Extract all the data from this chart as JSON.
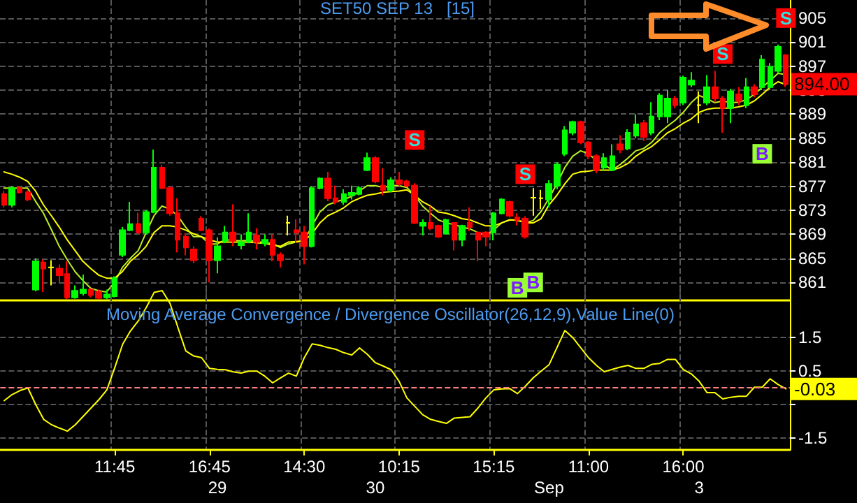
{
  "chart_data": [
    {
      "type": "candlestick",
      "title": "SET50 SEP 13   [15]",
      "categories": [
        null,
        null,
        null,
        null,
        null,
        null,
        null,
        null,
        null,
        null,
        null,
        null,
        null,
        null,
        null,
        null,
        null,
        null,
        null,
        null,
        null,
        null,
        null,
        null,
        null,
        null,
        null,
        null,
        null,
        null,
        null,
        null,
        null,
        null,
        null,
        null,
        null,
        null,
        null,
        null,
        null,
        null,
        null,
        null,
        null,
        null,
        null,
        null,
        null,
        null,
        null,
        null,
        null,
        null,
        null,
        null,
        null,
        null,
        null,
        null,
        null,
        null,
        null,
        null,
        null,
        null,
        null,
        null,
        null,
        null,
        null,
        null,
        null,
        null,
        null,
        null,
        null,
        null,
        null,
        null,
        null,
        null,
        null,
        null,
        null,
        null,
        null,
        null,
        null,
        null,
        null,
        null,
        null,
        null,
        null,
        null,
        null,
        null,
        null,
        null
      ],
      "series": [
        {
          "ohlc": [
            [
              875.7,
              876.2,
              873.5,
              873.9
            ],
            [
              873.9,
              877,
              873.5,
              876.7
            ],
            [
              876.7,
              877,
              875.8,
              876.0
            ],
            [
              876,
              876.3,
              874.5,
              874.8
            ],
            [
              859.8,
              865,
              859.5,
              864.5
            ],
            [
              864.3,
              864.8,
              859.4,
              863.3
            ],
            [
              863.5,
              864.7,
              860.5,
              863.5
            ],
            [
              863.3,
              864,
              861,
              862.2
            ],
            [
              862.4,
              864.5,
              858.2,
              858.5
            ],
            [
              858.5,
              860.5,
              858.3,
              859.6
            ],
            [
              859.2,
              862.3,
              858.8,
              859.8
            ],
            [
              859.8,
              860,
              858.5,
              858.9
            ],
            [
              859.4,
              859.8,
              858.2,
              858.4
            ],
            [
              858.5,
              859.8,
              858.2,
              859.0
            ],
            [
              858.7,
              862,
              858.5,
              861.7
            ],
            [
              865.6,
              870.2,
              865.2,
              869.7
            ],
            [
              869.7,
              874.4,
              869.5,
              870.7
            ],
            [
              870.7,
              872.6,
              869,
              869.3
            ],
            [
              869.3,
              873,
              869,
              872.7
            ],
            [
              872.7,
              883.1,
              872.5,
              880.1
            ],
            [
              880.1,
              880.6,
              876.5,
              876.7
            ],
            [
              876.7,
              877,
              872.1,
              872.5
            ],
            [
              872.5,
              875,
              866,
              868.1
            ],
            [
              868.6,
              869.2,
              865.5,
              866.8
            ],
            [
              866.5,
              867,
              864.2,
              864.7
            ],
            [
              871.6,
              872,
              869.5,
              869.7
            ],
            [
              869.7,
              870,
              861,
              864.7
            ],
            [
              864.7,
              868.5,
              862.5,
              867.0
            ],
            [
              867.9,
              870.4,
              867.5,
              869.3
            ],
            [
              869.3,
              874,
              867,
              867.9
            ],
            [
              867.2,
              869,
              866.5,
              867.7
            ],
            [
              867.9,
              872.5,
              867.5,
              869.3
            ],
            [
              868.8,
              870,
              866.5,
              867.7
            ],
            [
              867.5,
              869,
              867,
              868.1
            ],
            [
              868.1,
              869,
              864.5,
              865.6
            ],
            [
              865.6,
              866,
              863.5,
              864.7
            ],
            [
              870.9,
              872.1,
              868.8,
              870.9
            ],
            [
              869.7,
              871.5,
              867.5,
              869.3
            ],
            [
              869.3,
              870.4,
              864,
              867.0
            ],
            [
              867.0,
              877,
              866.8,
              876.7
            ],
            [
              876.7,
              878.5,
              876.5,
              878.3
            ],
            [
              878.3,
              879.4,
              874.5,
              875.0
            ],
            [
              875.0,
              877.1,
              874,
              874.4
            ],
            [
              874.4,
              876.5,
              873.9,
              875.7
            ],
            [
              875.5,
              877.1,
              874.8,
              875.9
            ],
            [
              875.7,
              877,
              875.5,
              876.7
            ],
            [
              879.7,
              882.6,
              879.5,
              881.7
            ],
            [
              881.7,
              882,
              877.5,
              877.8
            ],
            [
              877.1,
              880,
              875.5,
              876.4
            ],
            [
              876.4,
              878.5,
              876,
              878.0
            ],
            [
              878.0,
              879.4,
              877,
              877.4
            ],
            [
              877.8,
              878.1,
              876.9,
              877.1
            ],
            [
              877.1,
              877.5,
              870.7,
              870.9
            ],
            [
              870.4,
              871.5,
              868.8,
              870.9
            ],
            [
              870.9,
              873.7,
              869.7,
              870.0
            ],
            [
              870.4,
              870.6,
              868.4,
              868.6
            ],
            [
              869.1,
              871.6,
              869,
              871.4
            ],
            [
              870.9,
              871,
              866.3,
              868.1
            ],
            [
              868.1,
              870.6,
              867,
              870.4
            ],
            [
              870.9,
              873.5,
              869.5,
              870.2
            ],
            [
              869.3,
              869.5,
              864.5,
              868.1
            ],
            [
              869.3,
              869.5,
              867,
              868.6
            ],
            [
              869.3,
              872.7,
              868,
              872.5
            ],
            [
              872.5,
              875,
              872.3,
              874.8
            ],
            [
              874.4,
              874.6,
              871.8,
              872.1
            ],
            [
              871.8,
              872.5,
              870.5,
              871.4
            ],
            [
              871.6,
              872,
              868.3,
              868.6
            ],
            [
              875.1,
              876.7,
              872.1,
              875.1
            ],
            [
              875,
              876.4,
              873.2,
              875
            ],
            [
              874.8,
              878,
              873.5,
              877.4
            ],
            [
              877.1,
              881,
              876.5,
              880.6
            ],
            [
              882.4,
              887,
              882,
              886.3
            ],
            [
              885.9,
              887.9,
              885.5,
              887.7
            ],
            [
              887.7,
              887.9,
              884,
              884.3
            ],
            [
              884.3,
              884.5,
              881.5,
              882.0
            ],
            [
              882.0,
              882.3,
              879.2,
              879.7
            ],
            [
              880.1,
              882.5,
              879.5,
              881.7
            ],
            [
              879.7,
              884,
              879.5,
              882.0
            ],
            [
              884.0,
              885.5,
              882.5,
              883.1
            ],
            [
              883.3,
              886.5,
              883,
              885.9
            ],
            [
              885.4,
              889,
              885,
              887.3
            ],
            [
              887.5,
              888,
              884.5,
              885.2
            ],
            [
              885.9,
              891,
              885.5,
              888.6
            ],
            [
              888.6,
              892.5,
              888,
              892.1
            ],
            [
              888.6,
              893,
              887.5,
              891.6
            ],
            [
              891.6,
              892,
              890,
              890.5
            ],
            [
              890.9,
              895.4,
              890.5,
              895.1
            ],
            [
              893.9,
              896,
              893.5,
              894.6
            ],
            [
              890.5,
              892.8,
              887.5,
              890.5
            ],
            [
              890.9,
              895.5,
              890.5,
              893.5
            ],
            [
              893.5,
              896.2,
              891,
              891.6
            ],
            [
              891.6,
              892,
              885.9,
              890.0
            ],
            [
              890.0,
              893.2,
              887.5,
              892.8
            ],
            [
              892.3,
              893.5,
              890.5,
              891.2
            ],
            [
              890.5,
              895,
              890,
              893.5
            ],
            [
              893.5,
              894,
              891.8,
              892.3
            ],
            [
              893.5,
              898.8,
              893,
              898.1
            ],
            [
              893.5,
              897.5,
              893,
              896.9
            ],
            [
              896.2,
              900.6,
              895.8,
              900.2
            ],
            [
              898.8,
              899,
              893.5,
              894.0
            ]
          ],
          "colors": [
            "#ff0000",
            "#00ff00",
            "#ff0000",
            "#ff0000",
            "#00ff00",
            "#ff0000",
            "#ffff00",
            "#ff0000",
            "#ff0000",
            "#00ff00",
            "#00ff00",
            "#ff0000",
            "#ff0000",
            "#00ff00",
            "#00ff00",
            "#00ff00",
            "#00ff00",
            "#ff0000",
            "#00ff00",
            "#00ff00",
            "#ff0000",
            "#ff0000",
            "#ff0000",
            "#ff0000",
            "#ff0000",
            "#ff0000",
            "#ff0000",
            "#00ff00",
            "#00ff00",
            "#ff0000",
            "#00ff00",
            "#00ff00",
            "#ff0000",
            "#00ff00",
            "#ff0000",
            "#ff0000",
            "#ffff00",
            "#ff0000",
            "#ff0000",
            "#00ff00",
            "#00ff00",
            "#ff0000",
            "#ff0000",
            "#00ff00",
            "#00ff00",
            "#00ff00",
            "#00ff00",
            "#ff0000",
            "#ff0000",
            "#00ff00",
            "#ff0000",
            "#ff0000",
            "#ff0000",
            "#00ff00",
            "#ff0000",
            "#ff0000",
            "#00ff00",
            "#ff0000",
            "#00ff00",
            "#ff0000",
            "#ff0000",
            "#ff0000",
            "#00ff00",
            "#00ff00",
            "#ff0000",
            "#ff0000",
            "#ff0000",
            "#ffff00",
            "#ffff00",
            "#00ff00",
            "#00ff00",
            "#00ff00",
            "#00ff00",
            "#ff0000",
            "#ff0000",
            "#ff0000",
            "#00ff00",
            "#00ff00",
            "#ff0000",
            "#00ff00",
            "#00ff00",
            "#ff0000",
            "#00ff00",
            "#00ff00",
            "#00ff00",
            "#ff0000",
            "#00ff00",
            "#00ff00",
            "#ffff00",
            "#00ff00",
            "#ff0000",
            "#ff0000",
            "#00ff00",
            "#ff0000",
            "#00ff00",
            "#ff0000",
            "#00ff00",
            "#00ff00",
            "#00ff00",
            "#ff0000"
          ]
        },
        {
          "type": "line",
          "color": "#bbee22",
          "values": [
            876.7,
            876.7,
            876.7,
            876.7,
            874.5,
            872.5,
            869.8,
            867,
            864.8,
            862.8,
            861.3,
            860,
            859.6,
            859.4,
            861,
            863.5,
            865,
            866.3,
            869.3,
            872.1,
            873.7,
            873.2,
            872.1,
            870.2,
            868.6,
            868.6,
            867.4,
            867.4,
            868.1,
            868,
            867.9,
            868,
            867.8,
            867.6,
            867.5,
            866.8,
            867.4,
            867.7,
            867.9,
            870.4,
            872.7,
            873.9,
            874.4,
            874.8,
            875.3,
            876.2,
            877.1,
            877.1,
            876.8,
            877.1,
            877.1,
            876.8,
            875.5,
            873.7,
            872.5,
            871.4,
            870.9,
            870.6,
            870.2,
            869.9,
            869.3,
            868.8,
            869.7,
            870.9,
            871.4,
            871.3,
            870.9,
            871.3,
            872.8,
            875,
            877.4,
            880.1,
            882,
            882.9,
            882.4,
            881.3,
            880.6,
            879.7,
            880.6,
            881.7,
            882.9,
            883.3,
            884.3,
            885.9,
            887,
            888,
            889.3,
            890.9,
            892.1,
            891.6,
            890.9,
            891.2,
            890.9,
            891,
            891.4,
            892.3,
            893.5,
            894.6,
            895.8,
            895.6
          ]
        },
        {
          "type": "line",
          "color": "#ffff00",
          "values": [
            879.4,
            879,
            878.5,
            877.8,
            876.2,
            873.9,
            872.1,
            870.2,
            868.1,
            866.3,
            864.5,
            863.3,
            862.2,
            861.7,
            861.7,
            862.8,
            864.5,
            865.6,
            867,
            869.3,
            870.4,
            870.4,
            870.2,
            869.7,
            869.1,
            868.6,
            868.1,
            867.7,
            867.7,
            867.7,
            867.7,
            867.7,
            867.6,
            867.5,
            867.2,
            867,
            867.7,
            867.8,
            867.9,
            869.1,
            870.9,
            872.1,
            872.7,
            873.4,
            874.4,
            875,
            875.5,
            875.7,
            876,
            876.1,
            876.2,
            876.4,
            875.5,
            874.4,
            873.7,
            872.7,
            872.5,
            872.1,
            871.6,
            871.4,
            870.9,
            870.4,
            870.4,
            870.9,
            871.4,
            871.4,
            870.9,
            870.9,
            871.6,
            873.9,
            875.5,
            877.4,
            879,
            879.4,
            879.5,
            879.7,
            879.7,
            879.7,
            880.1,
            880.8,
            882,
            882.9,
            883.6,
            884.7,
            885.9,
            886.6,
            887.5,
            888.2,
            889.3,
            889.8,
            890,
            890,
            890,
            890.2,
            890.5,
            891.2,
            892.3,
            893.5,
            894.4,
            893.9
          ]
        },
        {
          "type": "scatter",
          "marker": "square",
          "color": "#ff0000",
          "values": [
            null,
            null,
            null,
            null,
            null,
            null,
            null,
            null,
            null,
            null,
            null,
            null,
            null,
            null,
            null,
            null,
            null,
            null,
            null,
            null,
            null,
            null,
            null,
            null,
            null,
            null,
            null,
            null,
            null,
            null,
            null,
            null,
            null,
            null,
            null,
            null,
            null,
            null,
            null,
            null,
            null,
            null,
            null,
            null,
            null,
            null,
            null,
            null,
            null,
            null,
            null,
            null,
            884.7,
            null,
            null,
            null,
            null,
            null,
            null,
            null,
            null,
            null,
            null,
            null,
            null,
            null,
            879,
            null,
            null,
            null,
            null,
            null,
            null,
            null,
            null,
            null,
            null,
            null,
            null,
            null,
            null,
            null,
            null,
            null,
            null,
            null,
            null,
            null,
            null,
            null,
            null,
            899,
            null,
            null,
            null,
            null,
            null,
            null,
            null,
            905
          ],
          "value_labels": [
            null,
            null,
            null,
            null,
            null,
            null,
            null,
            null,
            null,
            null,
            null,
            null,
            null,
            null,
            null,
            null,
            null,
            null,
            null,
            null,
            null,
            null,
            null,
            null,
            null,
            null,
            null,
            null,
            null,
            null,
            null,
            null,
            null,
            null,
            null,
            null,
            null,
            null,
            null,
            null,
            null,
            null,
            null,
            null,
            null,
            null,
            null,
            null,
            null,
            null,
            null,
            null,
            "S",
            null,
            null,
            null,
            null,
            null,
            null,
            null,
            null,
            null,
            null,
            null,
            null,
            null,
            "S",
            null,
            null,
            null,
            null,
            null,
            null,
            null,
            null,
            null,
            null,
            null,
            null,
            null,
            null,
            null,
            null,
            null,
            null,
            null,
            null,
            null,
            null,
            null,
            null,
            "S",
            null,
            null,
            null,
            null,
            null,
            null,
            null,
            "S"
          ]
        },
        {
          "type": "scatter",
          "marker": "square",
          "color": "#99ff33",
          "values": [
            null,
            null,
            null,
            null,
            null,
            null,
            null,
            null,
            null,
            null,
            null,
            null,
            null,
            null,
            null,
            null,
            null,
            null,
            null,
            null,
            null,
            null,
            null,
            null,
            null,
            null,
            null,
            null,
            null,
            null,
            null,
            null,
            null,
            null,
            null,
            null,
            null,
            null,
            null,
            null,
            null,
            null,
            null,
            null,
            null,
            null,
            null,
            null,
            null,
            null,
            null,
            null,
            null,
            null,
            null,
            null,
            null,
            null,
            null,
            null,
            null,
            null,
            null,
            null,
            null,
            860.1,
            null,
            861.0,
            null,
            null,
            null,
            null,
            null,
            null,
            null,
            null,
            null,
            null,
            null,
            null,
            null,
            null,
            null,
            null,
            null,
            null,
            null,
            null,
            null,
            null,
            null,
            null,
            null,
            null,
            null,
            null,
            882.4,
            null,
            null,
            null
          ],
          "value_labels": [
            null,
            null,
            null,
            null,
            null,
            null,
            null,
            null,
            null,
            null,
            null,
            null,
            null,
            null,
            null,
            null,
            null,
            null,
            null,
            null,
            null,
            null,
            null,
            null,
            null,
            null,
            null,
            null,
            null,
            null,
            null,
            null,
            null,
            null,
            null,
            null,
            null,
            null,
            null,
            null,
            null,
            null,
            null,
            null,
            null,
            null,
            null,
            null,
            null,
            null,
            null,
            null,
            null,
            null,
            null,
            null,
            null,
            null,
            null,
            null,
            null,
            null,
            null,
            null,
            null,
            "B",
            null,
            "B",
            null,
            null,
            null,
            null,
            null,
            null,
            null,
            null,
            null,
            null,
            null,
            null,
            null,
            null,
            null,
            null,
            null,
            null,
            null,
            null,
            null,
            null,
            null,
            null,
            null,
            null,
            null,
            null,
            "B",
            null,
            null,
            null
          ]
        }
      ],
      "ylim": [
        858,
        908
      ],
      "yticks": [
        861,
        865,
        869,
        873,
        877,
        881,
        885,
        889,
        893,
        897,
        901,
        905
      ],
      "grid": true,
      "tick_labels": "y",
      "marker": "none",
      "annotations": [
        "894.00"
      ]
    },
    {
      "type": "line",
      "title": "Moving Average Convergence / Divergence Oscillator(26,12,9),Value Line(0)",
      "categories": [
        null,
        null,
        null,
        null,
        null,
        null,
        null,
        null,
        null,
        null,
        null,
        null,
        null,
        null,
        "11:45",
        null,
        null,
        null,
        null,
        null,
        null,
        null,
        null,
        null,
        null,
        null,
        "16:45",
        null,
        null,
        null,
        null,
        null,
        null,
        null,
        null,
        null,
        null,
        null,
        "14:30",
        null,
        null,
        null,
        null,
        null,
        null,
        null,
        null,
        null,
        null,
        null,
        "10:15",
        null,
        null,
        null,
        null,
        null,
        null,
        null,
        null,
        null,
        null,
        null,
        "15:15",
        null,
        null,
        null,
        null,
        null,
        null,
        null,
        null,
        null,
        null,
        null,
        "11:00",
        null,
        null,
        null,
        null,
        null,
        null,
        null,
        null,
        null,
        null,
        null,
        "16:00",
        null,
        null,
        null,
        null,
        null,
        null,
        null,
        null,
        null,
        null,
        null,
        null,
        null
      ],
      "color": "#ffff00",
      "values": [
        -0.38,
        -0.2,
        -0.08,
        0,
        -0.5,
        -0.94,
        -1.1,
        -1.2,
        -1.29,
        -1.1,
        -0.85,
        -0.6,
        -0.35,
        -0.06,
        0.6,
        1.3,
        1.7,
        2.0,
        2.4,
        2.85,
        2.9,
        2.52,
        1.8,
        1.1,
        0.95,
        0.9,
        0.58,
        0.55,
        0.54,
        0.48,
        0.44,
        0.5,
        0.5,
        0.35,
        0.15,
        0.3,
        0.44,
        0.35,
        0.9,
        1.31,
        1.27,
        1.2,
        1.15,
        1.05,
        0.98,
        1.19,
        1.0,
        0.75,
        0.65,
        0.54,
        0.2,
        -0.3,
        -0.55,
        -0.8,
        -0.94,
        -1.0,
        -1.06,
        -0.9,
        -0.88,
        -0.86,
        -0.6,
        -0.3,
        -0.06,
        -0.03,
        -0.02,
        -0.17,
        0.05,
        0.3,
        0.5,
        0.69,
        1.2,
        1.71,
        1.5,
        1.2,
        0.9,
        0.67,
        0.48,
        0.55,
        0.62,
        0.67,
        0.58,
        0.58,
        0.7,
        0.73,
        0.85,
        0.85,
        0.55,
        0.42,
        0.2,
        -0.14,
        -0.14,
        -0.33,
        -0.28,
        -0.25,
        -0.25,
        0.02,
        0.02,
        0.27,
        0.1,
        -0.03
      ],
      "ylim": [
        -1.85,
        3.0
      ],
      "yticks": [
        -1.5,
        {
          "value": -0.5,
          "label": null
        },
        0.5,
        1.5
      ],
      "grid": true,
      "marker": "none",
      "ref_lines": [
        {
          "axis": "y",
          "value": 0,
          "color": "#ff8080",
          "line_style": "dashed"
        }
      ],
      "annotations": [
        "-0.03",
        "29",
        "30",
        "Sep",
        "3"
      ]
    }
  ]
}
